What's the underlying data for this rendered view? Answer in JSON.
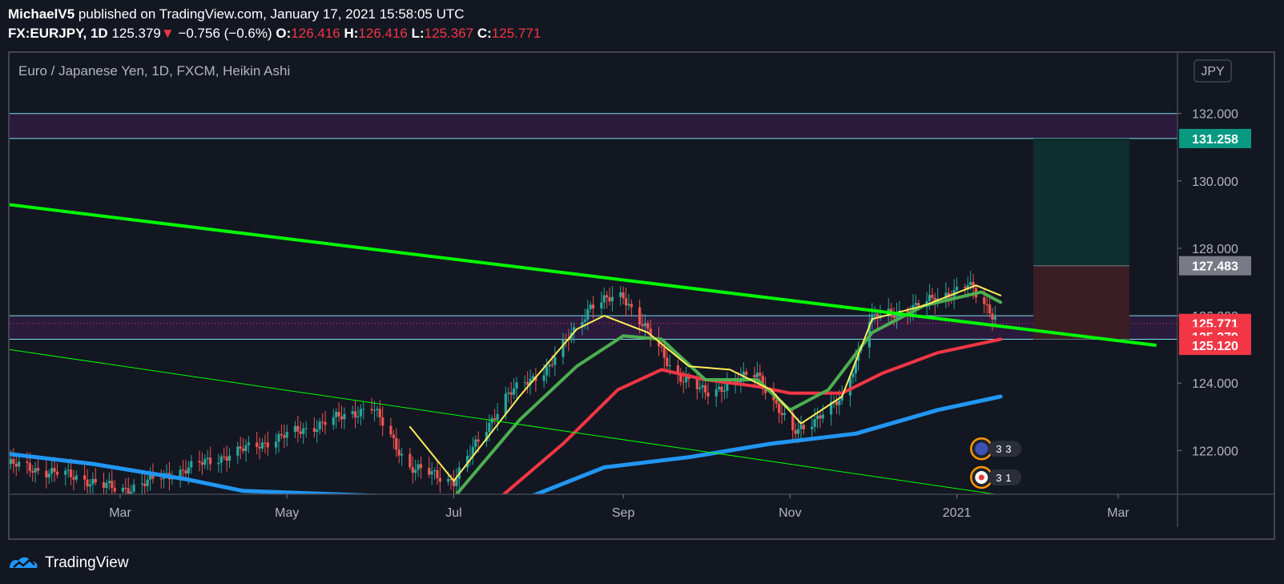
{
  "header": {
    "author": "MichaelV5",
    "published_text": "published on TradingView.com, January 17, 2021 15:58:05 UTC",
    "symbol": "FX:EURJPY, 1D",
    "last_price": "125.379",
    "change_arrow": "▼",
    "change": "−0.756 (−0.6%)",
    "o_label": "O:",
    "o_value": "126.416",
    "h_label": "H:",
    "h_value": "126.416",
    "l_label": "L:",
    "l_value": "125.367",
    "c_label": "C:",
    "c_value": "125.771"
  },
  "chart_title": "Euro / Japanese Yen, 1D, FXCM, Heikin Ashi",
  "currency_button": "JPY",
  "footer": {
    "brand": "TradingView"
  },
  "colors": {
    "background": "#131722",
    "up_candle": "#26a69a",
    "down_candle": "#ef5350",
    "trendline": "#00ff00",
    "ema_fast": "#ffee58",
    "ema_mid": "#4caf50",
    "ema_slow": "#f23645",
    "ema_long": "#2196f3",
    "zone_fill": "#2a1b3d",
    "zone_border": "#7ee0e8"
  },
  "chart_data": {
    "type": "candlestick",
    "x_ticks": [
      "Mar",
      "May",
      "Jul",
      "Sep",
      "Nov",
      "2021",
      "Mar"
    ],
    "y_ticks": [
      "132.000",
      "130.000",
      "128.000",
      "126.000",
      "124.000",
      "122.000"
    ],
    "ylim": [
      120.7,
      133.8
    ],
    "price_labels": [
      {
        "value": 131.258,
        "text": "131.258",
        "color": "#089981"
      },
      {
        "value": 127.483,
        "text": "127.483",
        "color": "#787b86"
      },
      {
        "value": 125.771,
        "text": "125.771",
        "color": "#f23645"
      },
      {
        "value": 125.379,
        "text": "125.379",
        "color": "#f23645"
      },
      {
        "value": 125.12,
        "text": "125.120",
        "color": "#f23645"
      }
    ],
    "resistance_zone": [
      131.258,
      132.0
    ],
    "support_zone": [
      125.3,
      126.0
    ],
    "position_box": {
      "target": 131.258,
      "entry": 127.483,
      "stop": 125.3
    },
    "trendlines": [
      {
        "from": {
          "date": "2020-01-20",
          "price": 129.3
        },
        "to": {
          "date": "2021-03-15",
          "price": 125.12
        },
        "width": 4
      },
      {
        "from": {
          "date": "2020-01-20",
          "price": 125.0
        },
        "to": {
          "date": "2021-03-15",
          "price": 120.0
        },
        "width": 1
      }
    ],
    "ema_series": [
      {
        "key": "ema_long",
        "width": 5,
        "points": [
          [
            "2020-01-20",
            121.9
          ],
          [
            "2020-02-20",
            121.6
          ],
          [
            "2020-03-25",
            121.15
          ],
          [
            "2020-04-15",
            120.8
          ],
          [
            "2020-07-25",
            120.5
          ],
          [
            "2020-08-25",
            121.5
          ],
          [
            "2020-09-25",
            121.8
          ],
          [
            "2020-10-25",
            122.2
          ],
          [
            "2020-11-25",
            122.5
          ],
          [
            "2020-12-25",
            123.2
          ],
          [
            "2021-01-17",
            123.6
          ]
        ]
      },
      {
        "key": "ema_slow",
        "width": 4,
        "points": [
          [
            "2020-07-15",
            120.4
          ],
          [
            "2020-08-10",
            122.2
          ],
          [
            "2020-08-30",
            123.8
          ],
          [
            "2020-09-15",
            124.4
          ],
          [
            "2020-10-01",
            124.1
          ],
          [
            "2020-10-20",
            123.9
          ],
          [
            "2020-11-01",
            123.7
          ],
          [
            "2020-11-20",
            123.7
          ],
          [
            "2020-12-05",
            124.3
          ],
          [
            "2020-12-25",
            124.9
          ],
          [
            "2021-01-17",
            125.3
          ]
        ]
      },
      {
        "key": "ema_mid",
        "width": 4,
        "points": [
          [
            "2020-07-01",
            120.6
          ],
          [
            "2020-07-25",
            122.9
          ],
          [
            "2020-08-15",
            124.5
          ],
          [
            "2020-09-01",
            125.4
          ],
          [
            "2020-09-15",
            125.3
          ],
          [
            "2020-10-01",
            124.1
          ],
          [
            "2020-10-20",
            124.1
          ],
          [
            "2020-11-01",
            123.2
          ],
          [
            "2020-11-15",
            123.8
          ],
          [
            "2020-12-01",
            125.5
          ],
          [
            "2020-12-20",
            126.3
          ],
          [
            "2021-01-10",
            126.7
          ],
          [
            "2021-01-17",
            126.4
          ]
        ]
      },
      {
        "key": "ema_fast",
        "width": 2,
        "points": [
          [
            "2020-06-15",
            122.7
          ],
          [
            "2020-07-01",
            121.1
          ],
          [
            "2020-07-25",
            123.6
          ],
          [
            "2020-08-15",
            125.6
          ],
          [
            "2020-08-25",
            126.0
          ],
          [
            "2020-09-10",
            125.5
          ],
          [
            "2020-09-25",
            124.5
          ],
          [
            "2020-10-10",
            124.4
          ],
          [
            "2020-10-25",
            123.8
          ],
          [
            "2020-11-05",
            122.8
          ],
          [
            "2020-11-20",
            123.6
          ],
          [
            "2020-12-01",
            125.9
          ],
          [
            "2020-12-20",
            126.3
          ],
          [
            "2021-01-08",
            126.9
          ],
          [
            "2021-01-17",
            126.6
          ]
        ]
      }
    ],
    "anchors": [
      [
        "2020-01-20",
        121.6
      ],
      [
        "2020-02-15",
        121.2
      ],
      [
        "2020-03-01",
        120.8
      ],
      [
        "2020-06-01",
        123.3
      ],
      [
        "2020-06-15",
        121.5
      ],
      [
        "2020-07-01",
        121.1
      ],
      [
        "2020-07-20",
        123.6
      ],
      [
        "2020-08-05",
        124.5
      ],
      [
        "2020-08-20",
        126.3
      ],
      [
        "2020-09-01",
        126.6
      ],
      [
        "2020-09-20",
        124.3
      ],
      [
        "2020-10-01",
        123.7
      ],
      [
        "2020-10-20",
        124.3
      ],
      [
        "2020-11-02",
        122.5
      ],
      [
        "2020-11-20",
        123.5
      ],
      [
        "2020-11-30",
        125.9
      ],
      [
        "2020-12-15",
        126.2
      ],
      [
        "2021-01-05",
        126.9
      ],
      [
        "2021-01-17",
        125.8
      ]
    ],
    "events": [
      {
        "date": "2021-01-10",
        "price": 122.05,
        "label": "3",
        "label2": "3"
      },
      {
        "date": "2021-01-10",
        "price": 121.2,
        "label": "3",
        "label2": "1"
      }
    ]
  }
}
